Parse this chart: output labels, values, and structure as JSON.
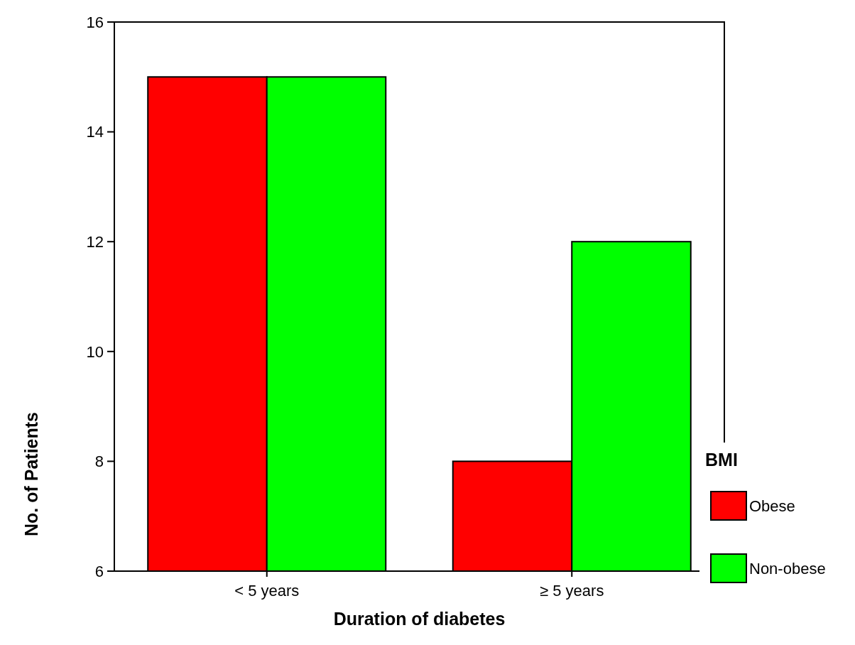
{
  "chart_data": {
    "type": "bar",
    "xlabel": "Duration of diabetes",
    "ylabel": "No. of Patients",
    "legend_title": "BMI",
    "categories": [
      "< 5 years",
      "≥ 5 years"
    ],
    "series": [
      {
        "name": "Obese",
        "color": "#ff0000",
        "values": [
          15,
          8
        ]
      },
      {
        "name": "Non-obese",
        "color": "#00ff00",
        "values": [
          15,
          12
        ]
      }
    ],
    "ylim": [
      6,
      16
    ],
    "yticks": [
      6,
      8,
      10,
      12,
      14,
      16
    ],
    "grid": false,
    "legend": "right"
  }
}
